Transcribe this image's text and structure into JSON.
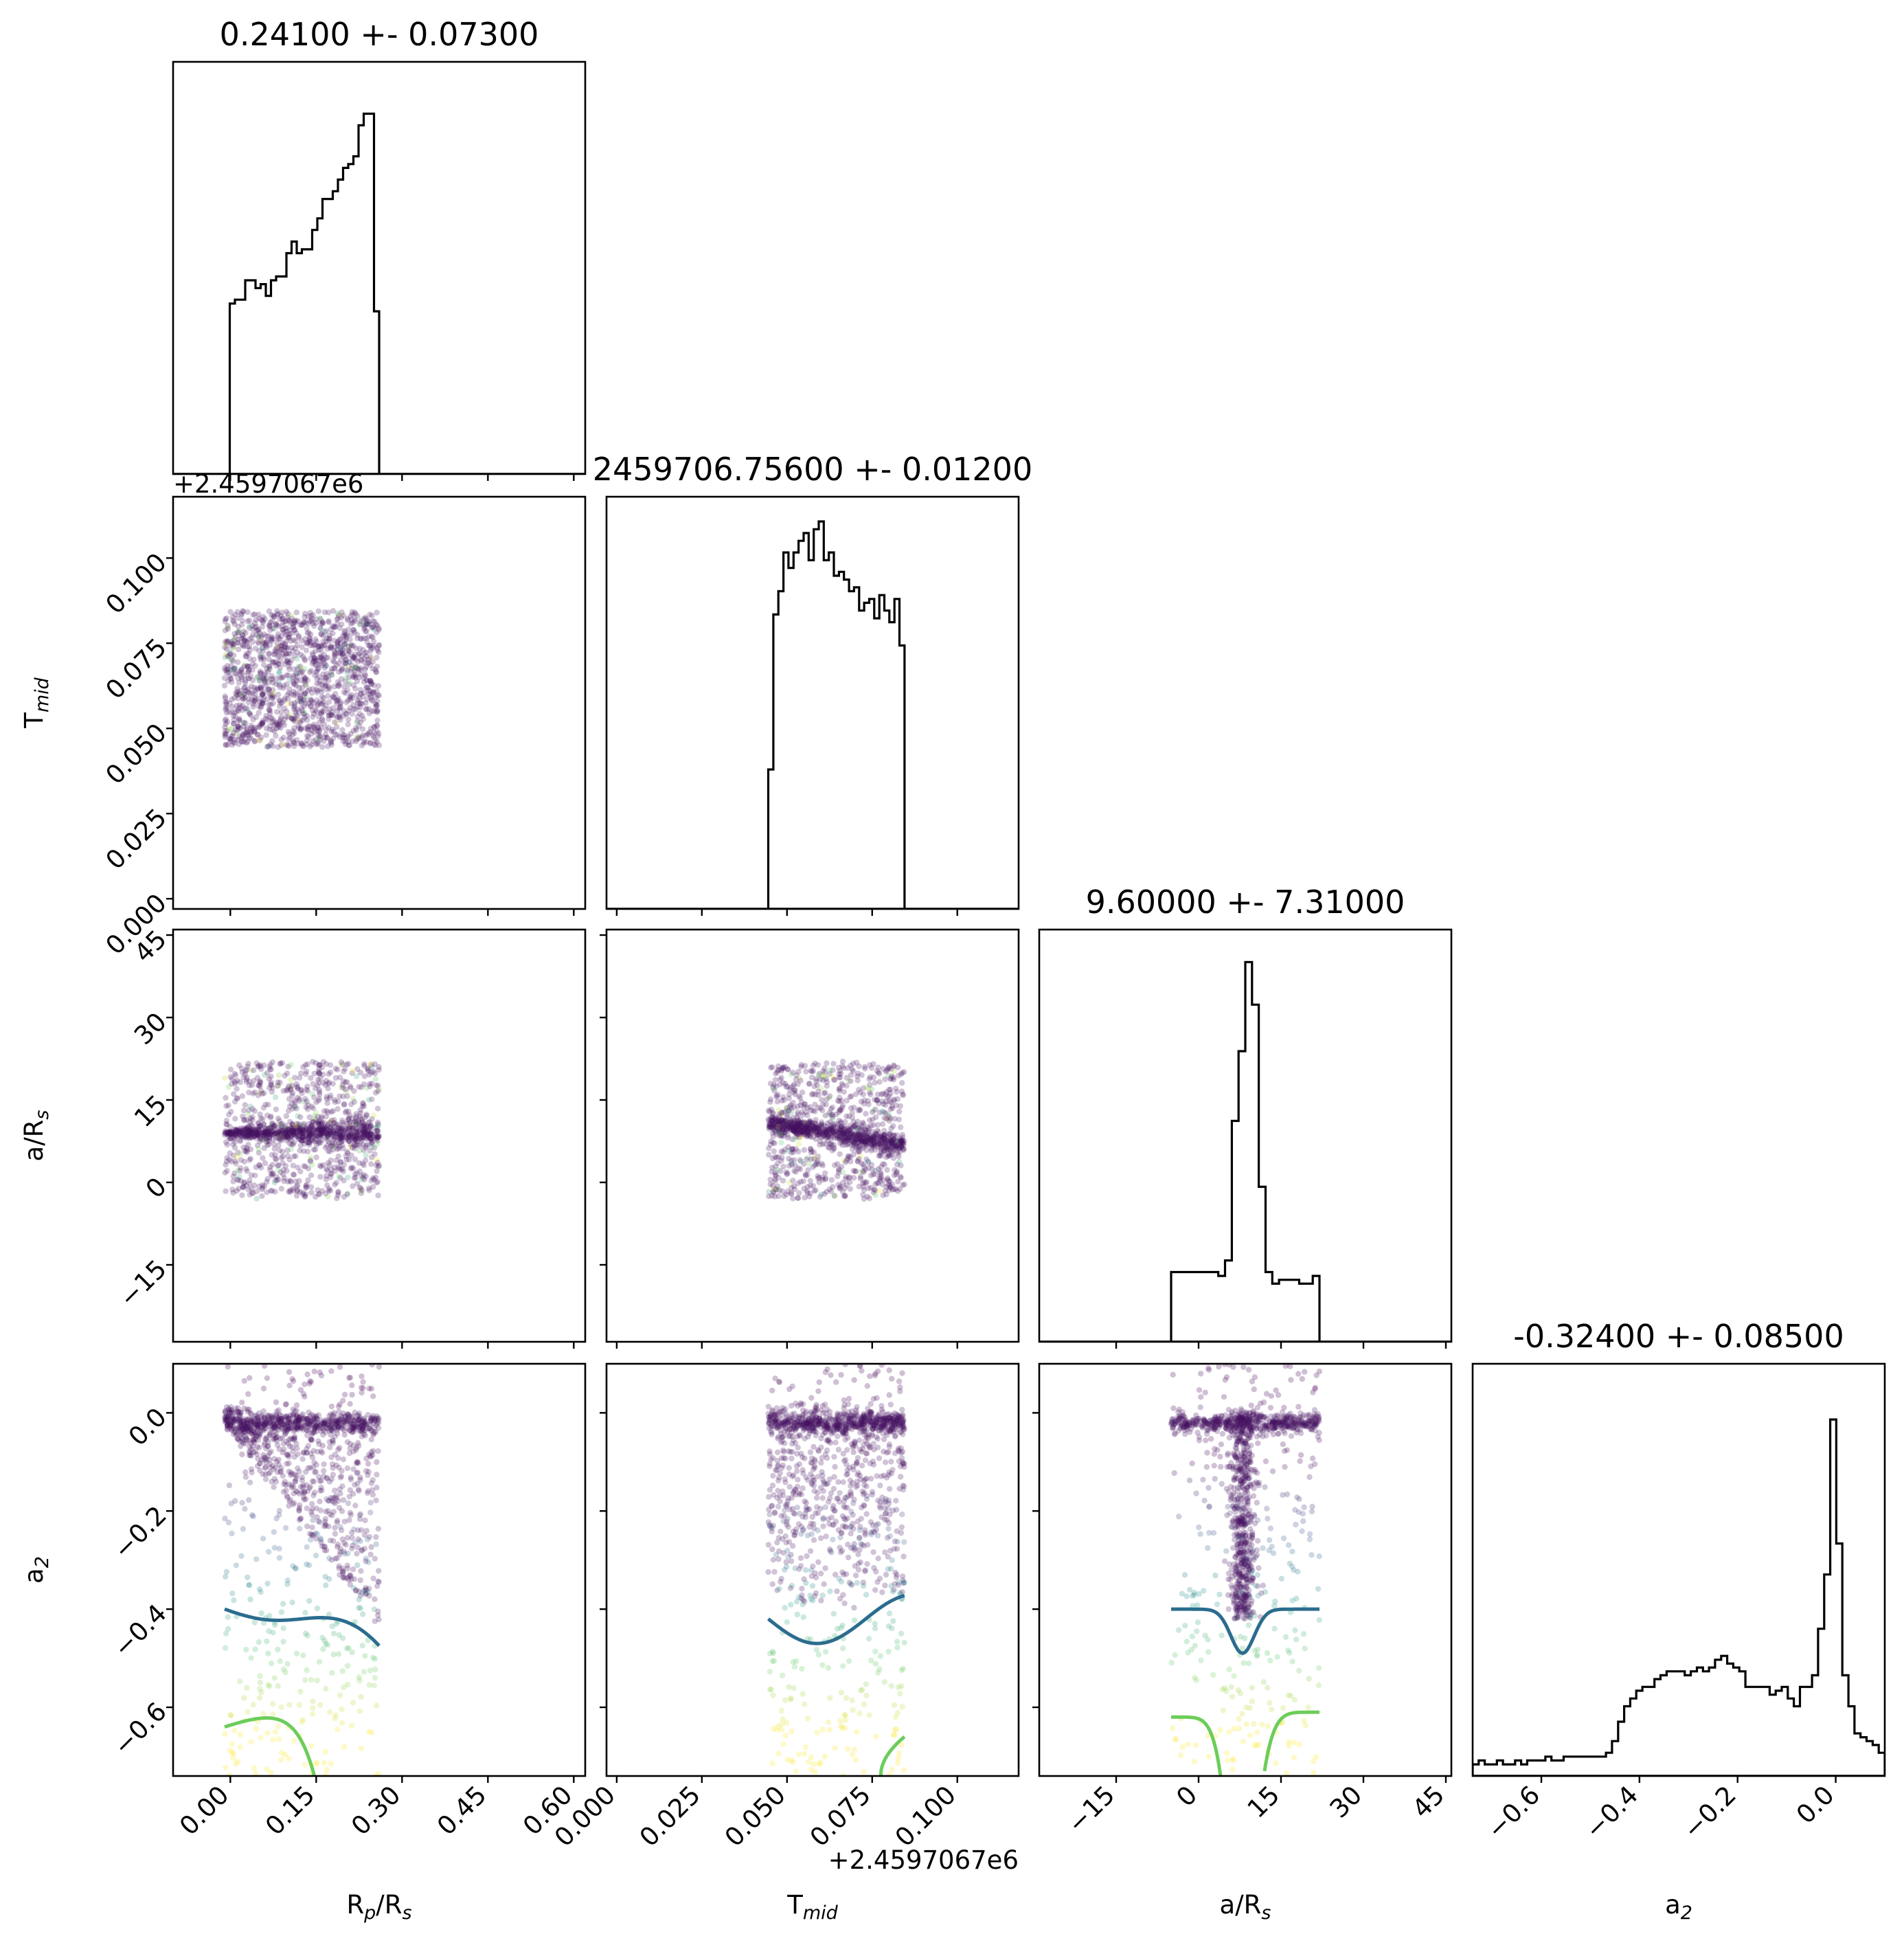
{
  "chart_data": {
    "type": "corner",
    "colormap": "viridis",
    "frame_color": "#000000",
    "hist_color": "#000000",
    "parameters": [
      {
        "name": "Rp/Rs",
        "label_main": "R",
        "label_sub": "p",
        "label_rest": "/R",
        "label_sub2": "s",
        "title": "0.24100 +- 0.07300",
        "range": [
          -0.1,
          0.62
        ],
        "ticks": [
          0.0,
          0.15,
          0.3,
          0.45,
          0.6
        ],
        "tick_labels": [
          "0.00",
          "0.15",
          "0.30",
          "0.45",
          "0.60"
        ],
        "offset": "",
        "hist_edges": [
          -0.01,
          0.26
        ],
        "hist_counts": [
          0,
          0.44,
          0.45,
          0.45,
          0.5,
          0.5,
          0.48,
          0.49,
          0.46,
          0.5,
          0.51,
          0.51,
          0.57,
          0.6,
          0.57,
          0.58,
          0.58,
          0.63,
          0.66,
          0.71,
          0.71,
          0.73,
          0.76,
          0.79,
          0.8,
          0.82,
          0.9,
          0.93,
          0.93,
          0.42
        ]
      },
      {
        "name": "Tmid",
        "label_main": "T",
        "label_sub": "mid",
        "label_rest": "",
        "label_sub2": "",
        "title": "2459706.75600 +- 0.01200",
        "range": [
          -0.003,
          0.118
        ],
        "ticks": [
          0.0,
          0.025,
          0.05,
          0.075,
          0.1
        ],
        "tick_labels": [
          "0.000",
          "0.025",
          "0.050",
          "0.075",
          "0.100"
        ],
        "offset": "+2.4597067e6",
        "hist_edges": [
          0.0445,
          0.0845
        ],
        "hist_counts": [
          0.36,
          0.76,
          0.82,
          0.92,
          0.88,
          0.92,
          0.95,
          0.97,
          0.9,
          0.98,
          1.0,
          0.9,
          0.92,
          0.86,
          0.87,
          0.85,
          0.82,
          0.83,
          0.77,
          0.79,
          0.8,
          0.75,
          0.81,
          0.77,
          0.74,
          0.8,
          0.68
        ]
      },
      {
        "name": "a/Rs",
        "label_main": "a/R",
        "label_sub": "s",
        "label_rest": "",
        "label_sub2": "",
        "title": "9.60000 +- 7.31000",
        "range": [
          -29,
          46
        ],
        "ticks": [
          -15,
          0,
          15,
          30,
          45
        ],
        "tick_labels": [
          "−15",
          "0",
          "15",
          "30",
          "45"
        ],
        "offset": "",
        "hist_edges": [
          -5,
          22
        ],
        "hist_counts": [
          0.18,
          0.18,
          0.18,
          0.18,
          0.18,
          0.18,
          0.18,
          0.17,
          0.21,
          0.57,
          0.75,
          0.98,
          0.87,
          0.4,
          0.18,
          0.15,
          0.16,
          0.16,
          0.16,
          0.15,
          0.15,
          0.17
        ]
      },
      {
        "name": "a2",
        "label_main": "a",
        "label_sub": "2",
        "label_rest": "",
        "label_sub2": "",
        "title": "-0.32400 +- 0.08500",
        "range": [
          -0.74,
          0.1
        ],
        "ticks": [
          -0.6,
          -0.4,
          -0.2,
          0.0
        ],
        "tick_labels": [
          "−0.6",
          "−0.4",
          "−0.2",
          "0.0"
        ],
        "offset": "",
        "hist_edges": [
          -0.74,
          0.1
        ],
        "hist_counts": [
          0.03,
          0.04,
          0.03,
          0.03,
          0.04,
          0.03,
          0.03,
          0.04,
          0.03,
          0.04,
          0.04,
          0.04,
          0.05,
          0.04,
          0.04,
          0.05,
          0.05,
          0.05,
          0.05,
          0.05,
          0.05,
          0.05,
          0.06,
          0.09,
          0.14,
          0.18,
          0.2,
          0.22,
          0.23,
          0.23,
          0.25,
          0.26,
          0.27,
          0.27,
          0.27,
          0.26,
          0.27,
          0.28,
          0.27,
          0.28,
          0.3,
          0.31,
          0.29,
          0.28,
          0.27,
          0.23,
          0.23,
          0.23,
          0.23,
          0.21,
          0.22,
          0.23,
          0.2,
          0.18,
          0.23,
          0.23,
          0.26,
          0.38,
          0.52,
          0.92,
          0.6,
          0.26,
          0.18,
          0.11,
          0.1,
          0.09,
          0.08,
          0.06
        ]
      }
    ],
    "contour_levels": [
      {
        "color": "#2b6c8e"
      },
      {
        "color": "#6ccd5a"
      }
    ],
    "scatter_alpha": 0.25,
    "grid": false,
    "legend": "none"
  }
}
